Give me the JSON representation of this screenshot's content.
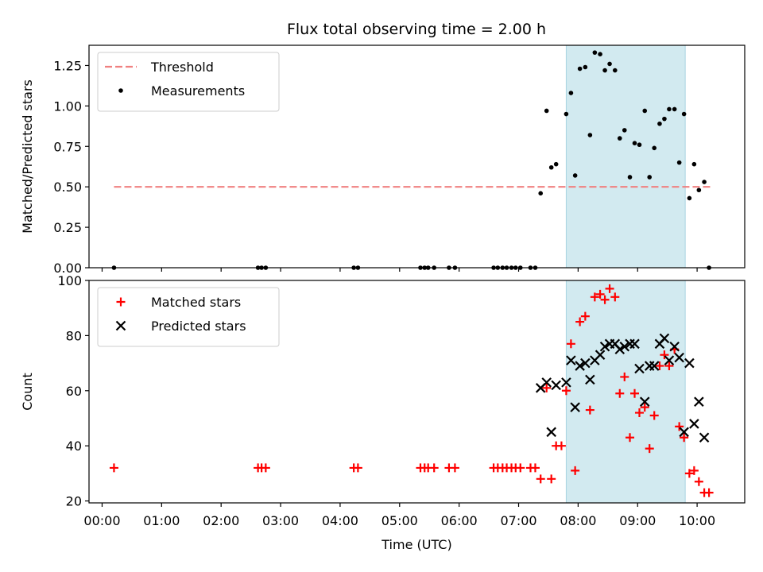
{
  "figure": {
    "title": "Flux total observing time = 2.00 h"
  },
  "chart_data": [
    {
      "type": "scatter",
      "name": "ratio-panel",
      "ylabel": "Matched/Predicted stars",
      "xlabel": "",
      "ylim": [
        0,
        1.375
      ],
      "xlim": [
        -0.22,
        10.8
      ],
      "y_ticks": [
        0.0,
        0.25,
        0.5,
        0.75,
        1.0,
        1.25
      ],
      "y_tick_labels": [
        "0.00",
        "0.25",
        "0.50",
        "0.75",
        "1.00",
        "1.25"
      ],
      "shaded_region": [
        7.8,
        9.8
      ],
      "shaded_color": "#d2eaf0",
      "legend_position": "upper-left",
      "series": [
        {
          "name": "Threshold",
          "style": "dashed-line",
          "color": "#f08080",
          "x": [
            0.2,
            10.25
          ],
          "y": [
            0.5,
            0.5
          ]
        },
        {
          "name": "Measurements",
          "style": "dot",
          "color": "#000000",
          "points": [
            [
              0.2,
              0.0
            ],
            [
              2.62,
              0.0
            ],
            [
              2.68,
              0.0
            ],
            [
              2.75,
              0.0
            ],
            [
              4.23,
              0.0
            ],
            [
              4.3,
              0.0
            ],
            [
              5.35,
              0.0
            ],
            [
              5.42,
              0.0
            ],
            [
              5.48,
              0.0
            ],
            [
              5.58,
              0.0
            ],
            [
              5.83,
              0.0
            ],
            [
              5.93,
              0.0
            ],
            [
              6.58,
              0.0
            ],
            [
              6.65,
              0.0
            ],
            [
              6.73,
              0.0
            ],
            [
              6.8,
              0.0
            ],
            [
              6.88,
              0.0
            ],
            [
              6.95,
              0.0
            ],
            [
              7.03,
              0.0
            ],
            [
              7.2,
              0.0
            ],
            [
              7.28,
              0.0
            ],
            [
              7.37,
              0.46
            ],
            [
              7.47,
              0.97
            ],
            [
              7.55,
              0.62
            ],
            [
              7.63,
              0.64
            ],
            [
              7.8,
              0.95
            ],
            [
              7.88,
              1.08
            ],
            [
              7.95,
              0.57
            ],
            [
              8.03,
              1.23
            ],
            [
              8.12,
              1.24
            ],
            [
              8.2,
              0.82
            ],
            [
              8.28,
              1.33
            ],
            [
              8.37,
              1.32
            ],
            [
              8.45,
              1.22
            ],
            [
              8.53,
              1.26
            ],
            [
              8.62,
              1.22
            ],
            [
              8.7,
              0.8
            ],
            [
              8.78,
              0.85
            ],
            [
              8.87,
              0.56
            ],
            [
              8.95,
              0.77
            ],
            [
              9.03,
              0.76
            ],
            [
              9.12,
              0.97
            ],
            [
              9.2,
              0.56
            ],
            [
              9.28,
              0.74
            ],
            [
              9.37,
              0.89
            ],
            [
              9.45,
              0.92
            ],
            [
              9.53,
              0.98
            ],
            [
              9.62,
              0.98
            ],
            [
              9.7,
              0.65
            ],
            [
              9.78,
              0.95
            ],
            [
              9.87,
              0.43
            ],
            [
              9.95,
              0.64
            ],
            [
              10.03,
              0.48
            ],
            [
              10.12,
              0.53
            ],
            [
              10.2,
              0.0
            ]
          ]
        }
      ]
    },
    {
      "type": "scatter",
      "name": "count-panel",
      "ylabel": "Count",
      "xlabel": "Time (UTC)",
      "ylim": [
        19.3,
        100
      ],
      "xlim": [
        -0.22,
        10.8
      ],
      "y_ticks": [
        20,
        40,
        60,
        80,
        100
      ],
      "y_tick_labels": [
        "20",
        "40",
        "60",
        "80",
        "100"
      ],
      "x_ticks": [
        0,
        1,
        2,
        3,
        4,
        5,
        6,
        7,
        8,
        9,
        10
      ],
      "x_tick_labels": [
        "00:00",
        "01:00",
        "02:00",
        "03:00",
        "04:00",
        "05:00",
        "06:00",
        "07:00",
        "08:00",
        "09:00",
        "10:00"
      ],
      "shaded_region": [
        7.8,
        9.8
      ],
      "shaded_color": "#d2eaf0",
      "legend_position": "upper-left",
      "series": [
        {
          "name": "Matched stars",
          "style": "plus",
          "color": "#ff0000",
          "points": [
            [
              0.2,
              32
            ],
            [
              2.62,
              32
            ],
            [
              2.68,
              32
            ],
            [
              2.75,
              32
            ],
            [
              4.23,
              32
            ],
            [
              4.3,
              32
            ],
            [
              5.35,
              32
            ],
            [
              5.42,
              32
            ],
            [
              5.48,
              32
            ],
            [
              5.58,
              32
            ],
            [
              5.83,
              32
            ],
            [
              5.93,
              32
            ],
            [
              6.58,
              32
            ],
            [
              6.65,
              32
            ],
            [
              6.73,
              32
            ],
            [
              6.8,
              32
            ],
            [
              6.88,
              32
            ],
            [
              6.95,
              32
            ],
            [
              7.03,
              32
            ],
            [
              7.2,
              32
            ],
            [
              7.28,
              32
            ],
            [
              7.37,
              28
            ],
            [
              7.47,
              61
            ],
            [
              7.55,
              28
            ],
            [
              7.63,
              40
            ],
            [
              7.72,
              40
            ],
            [
              7.8,
              60
            ],
            [
              7.88,
              77
            ],
            [
              7.95,
              31
            ],
            [
              8.03,
              85
            ],
            [
              8.12,
              87
            ],
            [
              8.2,
              53
            ],
            [
              8.28,
              94
            ],
            [
              8.37,
              95
            ],
            [
              8.45,
              93
            ],
            [
              8.53,
              97
            ],
            [
              8.62,
              94
            ],
            [
              8.7,
              59
            ],
            [
              8.78,
              65
            ],
            [
              8.87,
              43
            ],
            [
              8.95,
              59
            ],
            [
              9.03,
              52
            ],
            [
              9.12,
              54
            ],
            [
              9.2,
              39
            ],
            [
              9.28,
              51
            ],
            [
              9.37,
              69
            ],
            [
              9.45,
              73
            ],
            [
              9.53,
              69
            ],
            [
              9.62,
              75
            ],
            [
              9.7,
              47
            ],
            [
              9.78,
              43
            ],
            [
              9.87,
              30
            ],
            [
              9.95,
              31
            ],
            [
              10.03,
              27
            ],
            [
              10.12,
              23
            ],
            [
              10.2,
              23
            ]
          ]
        },
        {
          "name": "Predicted stars",
          "style": "x",
          "color": "#000000",
          "points": [
            [
              7.37,
              61
            ],
            [
              7.47,
              63
            ],
            [
              7.55,
              45
            ],
            [
              7.63,
              62
            ],
            [
              7.8,
              63
            ],
            [
              7.88,
              71
            ],
            [
              7.95,
              54
            ],
            [
              8.03,
              69
            ],
            [
              8.12,
              70
            ],
            [
              8.2,
              64
            ],
            [
              8.28,
              71
            ],
            [
              8.37,
              73
            ],
            [
              8.45,
              76
            ],
            [
              8.53,
              77
            ],
            [
              8.62,
              77
            ],
            [
              8.7,
              75
            ],
            [
              8.78,
              76
            ],
            [
              8.87,
              77
            ],
            [
              8.95,
              77
            ],
            [
              9.03,
              68
            ],
            [
              9.12,
              56
            ],
            [
              9.2,
              69
            ],
            [
              9.28,
              69
            ],
            [
              9.37,
              77
            ],
            [
              9.45,
              79
            ],
            [
              9.53,
              71
            ],
            [
              9.62,
              76
            ],
            [
              9.7,
              72
            ],
            [
              9.78,
              45
            ],
            [
              9.87,
              70
            ],
            [
              9.95,
              48
            ],
            [
              10.03,
              56
            ],
            [
              10.12,
              43
            ]
          ]
        }
      ]
    }
  ]
}
